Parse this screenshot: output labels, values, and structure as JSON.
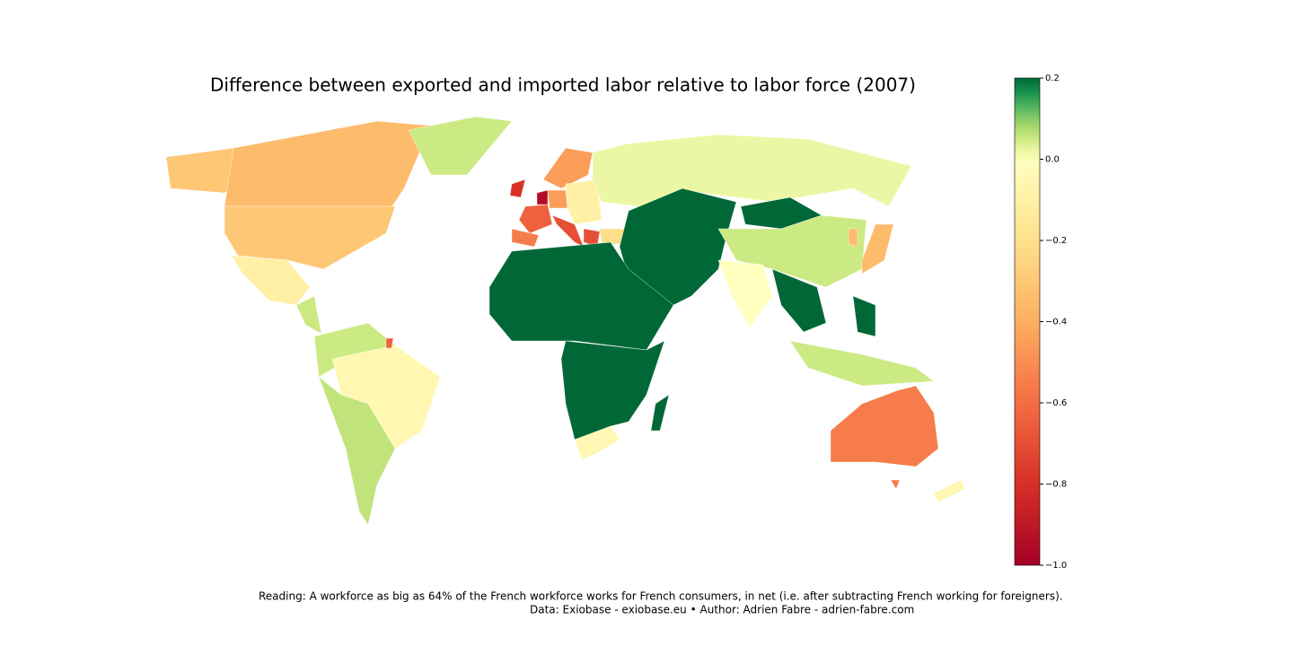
{
  "chart_data": {
    "type": "choropleth",
    "title": "Difference between exported and imported labor relative to labor force (2007)",
    "values": [
      -0.3,
      -0.35,
      -0.3,
      0.05,
      -0.1,
      0.05,
      0.05,
      -0.05,
      0.06,
      -0.64,
      -0.8,
      -0.95,
      -0.64,
      -0.55,
      -0.45,
      -0.7,
      -0.45,
      -0.1,
      -0.7,
      -0.2,
      0.02,
      0.2,
      0.2,
      0.05,
      0.0,
      0.2,
      0.05,
      0.2,
      -0.35,
      -0.35,
      0.2,
      0.2,
      -0.05,
      0.2,
      -0.55,
      -0.55,
      -0.05
    ],
    "clim": [
      -1,
      0.2
    ],
    "cticks": [
      0.2,
      {
        "value": 0,
        "label": "0.0"
      },
      {
        "value": -0.2,
        "label": "−0.2"
      },
      {
        "value": -0.4,
        "label": "−0.4"
      },
      {
        "value": -0.6,
        "label": "−0.6"
      },
      {
        "value": -0.8,
        "label": "−0.8"
      },
      {
        "value": -1,
        "label": "−1.0"
      }
    ],
    "notes": [
      "Reading: A workforce as big as 64% of the French workforce works for French consumers, in net (i.e. after subtracting French working for foreigners).",
      "Data: Exiobase - exiobase.eu • Author: Adrien Fabre - adrien-fabre.com"
    ]
  }
}
